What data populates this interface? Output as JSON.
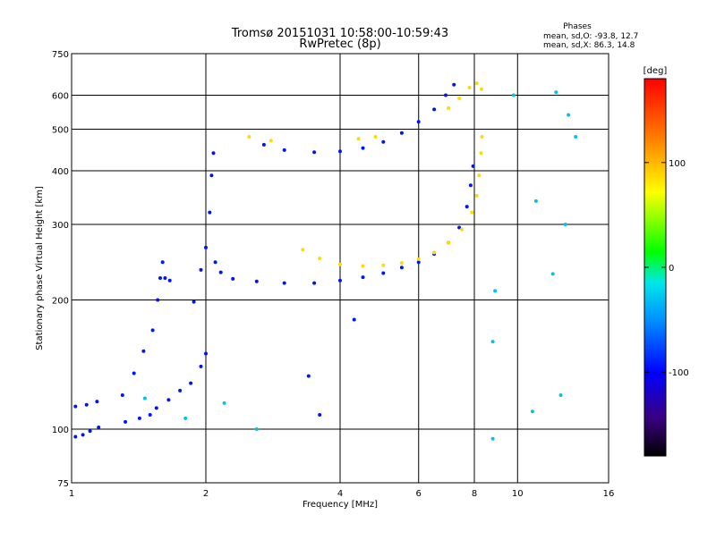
{
  "chart_data": {
    "type": "scatter",
    "title": "Tromsø 20151031 10:58:00-10:59:43",
    "subtitle": "RwPretec (8p)",
    "xlabel": "Frequency [MHz]",
    "ylabel": "Stationary phase Virtual Height [km]",
    "x_scale": "log2",
    "y_scale": "log",
    "xlim": [
      1,
      16
    ],
    "ylim": [
      75,
      750
    ],
    "x_ticks": [
      1,
      2,
      4,
      6,
      8,
      10,
      16
    ],
    "x_tick_labels": [
      "1",
      "2",
      "4",
      "6",
      "8",
      "10",
      "16"
    ],
    "y_ticks": [
      75,
      100,
      200,
      300,
      400,
      500,
      600,
      750
    ],
    "y_tick_labels": [
      "75",
      "100",
      "200",
      "300",
      "400",
      "500",
      "600",
      "750"
    ],
    "grid": true,
    "stats": {
      "heading": "Phases",
      "line_o": "mean, sd,O: -93.8, 12.7",
      "line_x": "mean, sd,X:  86.3, 14.8"
    },
    "colorbar": {
      "unit_label": "[deg]",
      "range": [
        -180,
        180
      ],
      "ticks": [
        100,
        0,
        -100
      ],
      "tick_labels": [
        "100",
        "0",
        "-100"
      ]
    },
    "series": [
      {
        "mode": "O",
        "phase_deg": -94,
        "points": [
          [
            1.02,
            96
          ],
          [
            1.06,
            97
          ],
          [
            1.1,
            99
          ],
          [
            1.15,
            101
          ],
          [
            1.02,
            113
          ],
          [
            1.08,
            114
          ],
          [
            1.14,
            116
          ],
          [
            1.3,
            120
          ],
          [
            1.38,
            135
          ],
          [
            1.45,
            152
          ],
          [
            1.52,
            170
          ],
          [
            1.56,
            200
          ],
          [
            1.58,
            225
          ],
          [
            1.6,
            245
          ],
          [
            1.62,
            225
          ],
          [
            1.66,
            222
          ],
          [
            1.55,
            112
          ],
          [
            1.65,
            117
          ],
          [
            1.75,
            123
          ],
          [
            1.85,
            128
          ],
          [
            1.95,
            140
          ],
          [
            2.0,
            150
          ],
          [
            1.88,
            198
          ],
          [
            1.95,
            235
          ],
          [
            2.0,
            265
          ],
          [
            2.04,
            320
          ],
          [
            2.06,
            390
          ],
          [
            2.08,
            440
          ],
          [
            2.1,
            245
          ],
          [
            2.16,
            232
          ],
          [
            2.3,
            224
          ],
          [
            2.6,
            221
          ],
          [
            3.0,
            219
          ],
          [
            3.5,
            219
          ],
          [
            4.0,
            222
          ],
          [
            4.5,
            226
          ],
          [
            5.0,
            231
          ],
          [
            5.5,
            238
          ],
          [
            6.0,
            245
          ],
          [
            6.5,
            256
          ],
          [
            7.0,
            272
          ],
          [
            7.4,
            295
          ],
          [
            7.7,
            330
          ],
          [
            7.85,
            370
          ],
          [
            7.95,
            410
          ],
          [
            2.7,
            460
          ],
          [
            3.0,
            447
          ],
          [
            3.5,
            442
          ],
          [
            4.0,
            444
          ],
          [
            4.5,
            452
          ],
          [
            5.0,
            467
          ],
          [
            5.5,
            490
          ],
          [
            6.0,
            520
          ],
          [
            6.5,
            556
          ],
          [
            6.9,
            600
          ],
          [
            7.2,
            635
          ],
          [
            1.32,
            104
          ],
          [
            1.42,
            106
          ],
          [
            1.5,
            108
          ],
          [
            3.4,
            133
          ],
          [
            3.6,
            108
          ],
          [
            4.3,
            180
          ]
        ]
      },
      {
        "mode": "X",
        "phase_deg": 86,
        "points": [
          [
            3.3,
            262
          ],
          [
            3.6,
            250
          ],
          [
            4.0,
            242
          ],
          [
            4.5,
            240
          ],
          [
            5.0,
            241
          ],
          [
            5.5,
            244
          ],
          [
            6.0,
            249
          ],
          [
            6.5,
            258
          ],
          [
            7.0,
            272
          ],
          [
            7.5,
            292
          ],
          [
            7.9,
            320
          ],
          [
            8.1,
            350
          ],
          [
            8.2,
            390
          ],
          [
            8.28,
            440
          ],
          [
            8.32,
            480
          ],
          [
            7.0,
            560
          ],
          [
            7.4,
            590
          ],
          [
            7.8,
            625
          ],
          [
            8.1,
            640
          ],
          [
            8.3,
            620
          ],
          [
            4.4,
            475
          ],
          [
            4.8,
            480
          ],
          [
            2.8,
            470
          ],
          [
            2.5,
            480
          ]
        ]
      },
      {
        "mode": "noise",
        "phase_deg": -30,
        "points": [
          [
            1.46,
            118
          ],
          [
            1.8,
            106
          ],
          [
            2.2,
            115
          ],
          [
            8.8,
            95
          ],
          [
            8.8,
            160
          ],
          [
            8.9,
            210
          ],
          [
            9.8,
            600
          ],
          [
            10.8,
            110
          ],
          [
            11.0,
            340
          ],
          [
            12.0,
            230
          ],
          [
            12.5,
            120
          ],
          [
            12.8,
            300
          ],
          [
            13.0,
            540
          ],
          [
            13.5,
            480
          ],
          [
            12.2,
            610
          ],
          [
            2.6,
            100
          ]
        ]
      }
    ]
  }
}
